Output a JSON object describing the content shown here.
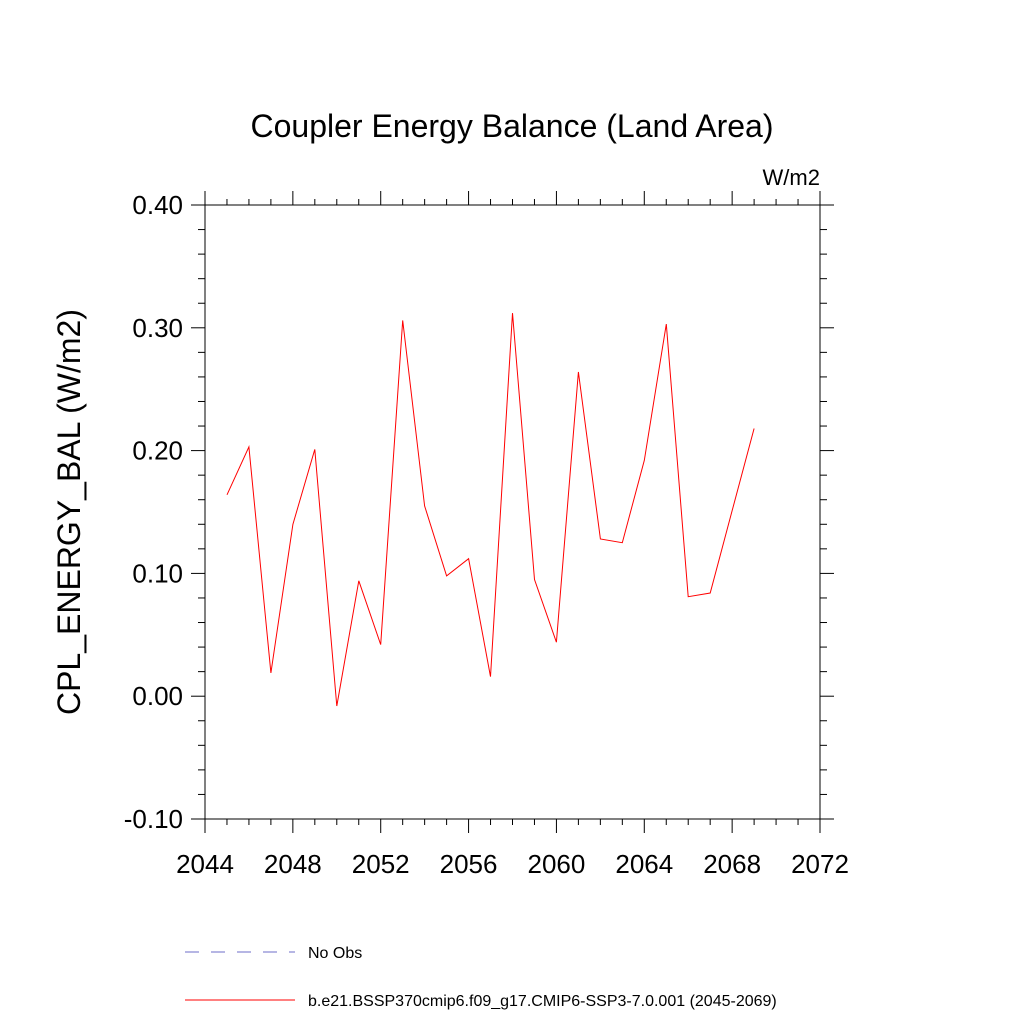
{
  "chart_data": {
    "type": "line",
    "title": "Coupler Energy Balance (Land Area)",
    "units": "W/m2",
    "xlabel": "",
    "ylabel": "CPL_ENERGY_BAL  (W/m2)",
    "xlim": [
      2044,
      2072
    ],
    "ylim": [
      -0.1,
      0.4
    ],
    "x_ticks": [
      "2044",
      "2048",
      "2052",
      "2056",
      "2060",
      "2064",
      "2068",
      "2072"
    ],
    "y_ticks": [
      "-0.10",
      "0.00",
      "0.10",
      "0.20",
      "0.30",
      "0.40"
    ],
    "grid": false,
    "legend_position": "bottom",
    "series": [
      {
        "name": "b.e21.BSSP370cmip6.f09_g17.CMIP6-SSP3-7.0.001 (2045-2069)",
        "color": "#ff0000",
        "style": "solid",
        "x": [
          2045,
          2046,
          2047,
          2048,
          2049,
          2050,
          2051,
          2052,
          2053,
          2054,
          2055,
          2056,
          2057,
          2058,
          2059,
          2060,
          2061,
          2062,
          2063,
          2064,
          2065,
          2066,
          2067,
          2068,
          2069
        ],
        "y": [
          0.164,
          0.203,
          0.019,
          0.14,
          0.201,
          -0.008,
          0.094,
          0.042,
          0.306,
          0.155,
          0.098,
          0.112,
          0.016,
          0.312,
          0.095,
          0.044,
          0.264,
          0.128,
          0.125,
          0.192,
          0.303,
          0.081,
          0.084,
          0.151,
          0.218
        ]
      },
      {
        "name": "No Obs",
        "color": "#6e6ec8",
        "style": "dashed",
        "x": [],
        "y": []
      }
    ]
  }
}
